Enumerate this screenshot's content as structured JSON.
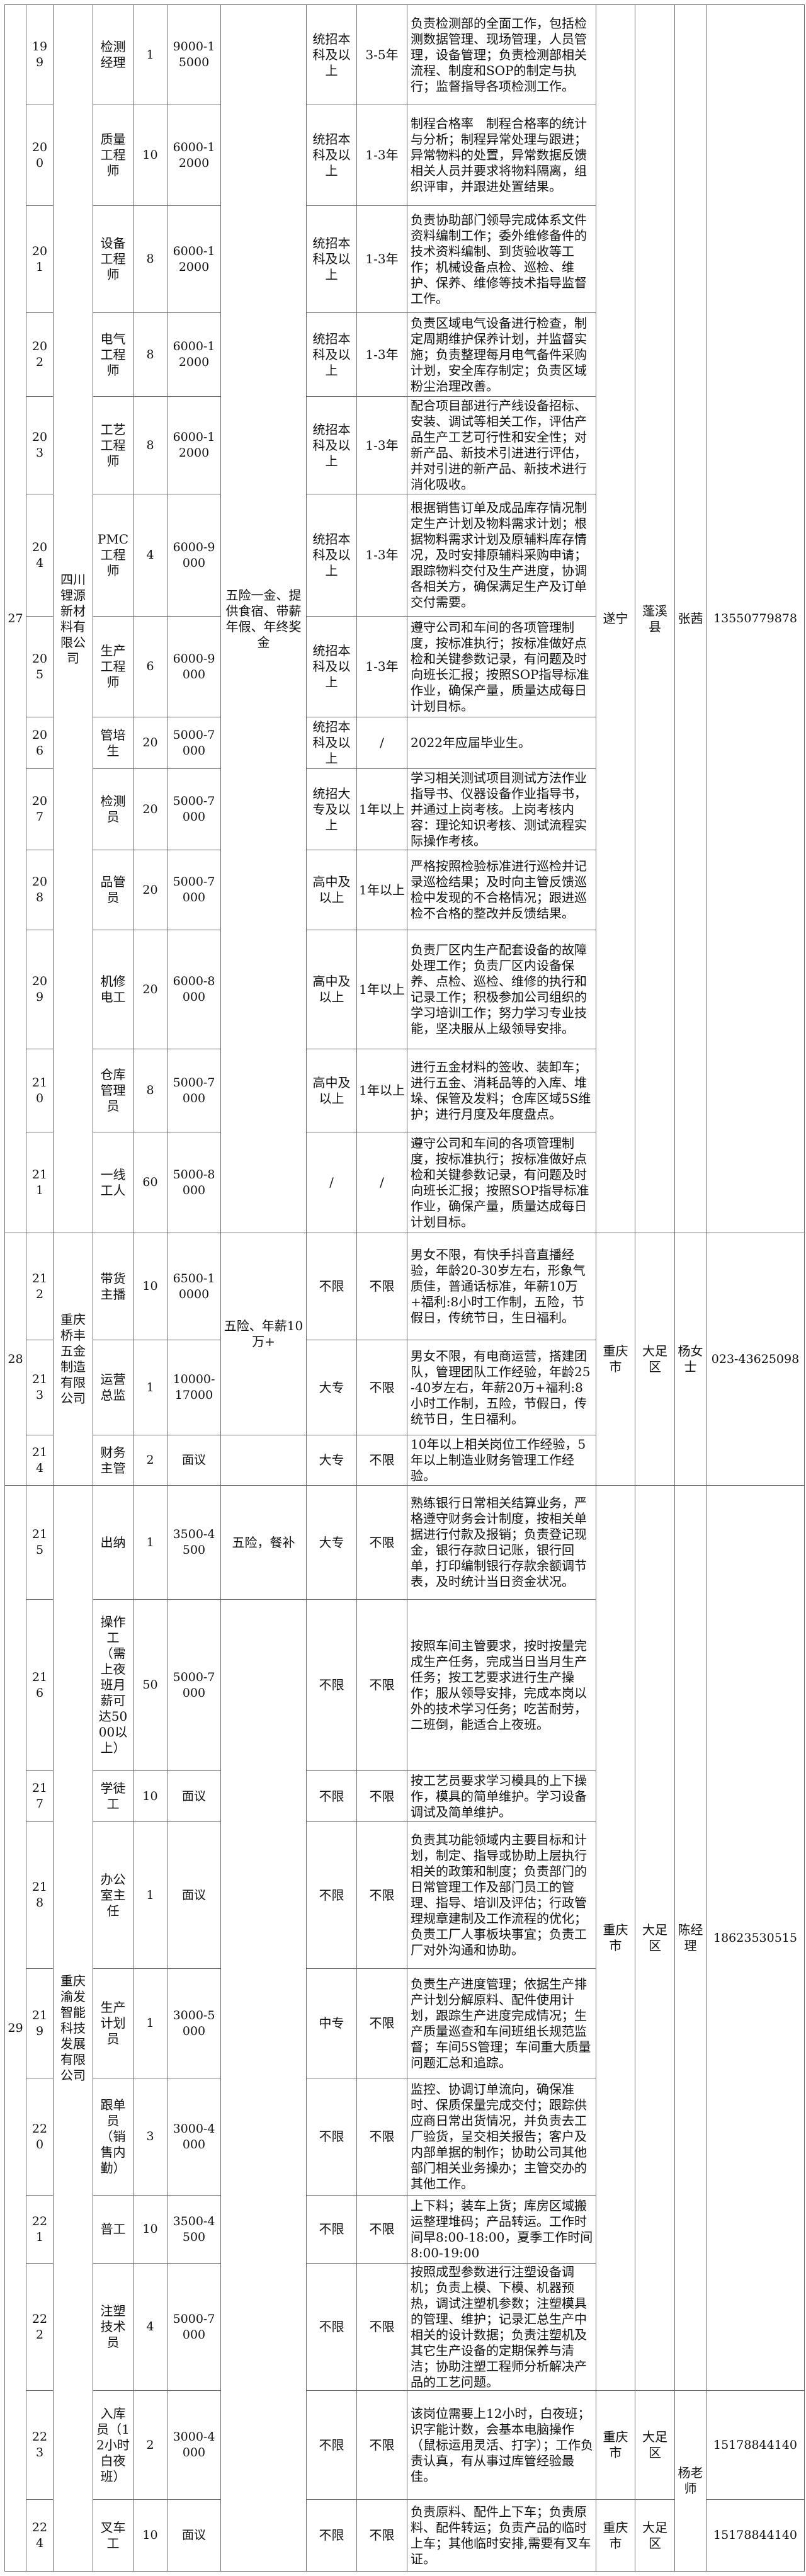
{
  "companies": [
    {
      "no": "27",
      "name": "四川锂源新材料有限公司",
      "benefits": [
        "五险一金、提供食宿、带薪年假、年终奖金"
      ],
      "locations": [
        {
          "city": "遂宁",
          "district": "蓬溪县",
          "phone": "13550779878"
        }
      ],
      "contacts": [
        "张茜"
      ],
      "jobs": [
        {
          "id": "199",
          "title": "检测经理",
          "count": "1",
          "salary": "9000-15000",
          "education": "统招本科及以上",
          "experience": "3-5年",
          "description": "负责检测部的全面工作，包括检测数据管理、现场管理，人员管理，设备管理；负责检测部相关流程、制度和SOP的制定与执行；监督指导各项检测工作。"
        },
        {
          "id": "200",
          "title": "质量工程师",
          "count": "10",
          "salary": "6000-12000",
          "education": "统招本科及以上",
          "experience": "1-3年",
          "description": "制程合格率　制程合格率的统计与分析；制程异常处理与跟进；异常物料的处置，异常数据反馈相关人员并要求将物料隔离，组织评审，并跟进处置结果。"
        },
        {
          "id": "201",
          "title": "设备工程师",
          "count": "8",
          "salary": "6000-12000",
          "education": "统招本科及以上",
          "experience": "1-3年",
          "description": "负责协助部门领导完成体系文件资料编制工作；委外维修备件的技术资料编制、到货验收等工作；机械设备点检、巡检、维护、保养、维修等技术指导监督工作。"
        },
        {
          "id": "202",
          "title": "电气工程师",
          "count": "8",
          "salary": "6000-12000",
          "education": "统招本科及以上",
          "experience": "1-3年",
          "description": "负责区域电气设备进行检查，制定周期维护保养计划，并监督实施；负责整理每月电气备件采购计划，安全库存制定；负责区域粉尘治理改善。"
        },
        {
          "id": "203",
          "title": "工艺工程师",
          "count": "8",
          "salary": "6000-12000",
          "education": "统招本科及以上",
          "experience": "1-3年",
          "description": "配合项目部进行产线设备招标、安装、调试等相关工作，评估产品生产工艺可行性和安全性；对新产品、新技术引进进行评估，并对引进的新产品、新技术进行消化吸收。"
        },
        {
          "id": "204",
          "title": "PMC工程师",
          "count": "4",
          "salary": "6000-9000",
          "education": "统招本科及以上",
          "experience": "1-3年",
          "description": "根据销售订单及成品库存情况制定生产计划及物料需求计划；根据物料需求计划及原辅料库存情况，及时安排原辅料采购申请；跟踪物料交付及生产进度，协调各相关方，确保满足生产及订单交付需要。"
        },
        {
          "id": "205",
          "title": "生产工程师",
          "count": "6",
          "salary": "6000-9000",
          "education": "统招本科及以上",
          "experience": "1-3年",
          "description": "遵守公司和车间的各项管理制度，按标准执行；按标准做好点检和关键参数记录，有问题及时向班长汇报；按照SOP指导标准作业，确保产量，质量达成每日计划目标。"
        },
        {
          "id": "206",
          "title": "管培生",
          "count": "20",
          "salary": "5000-7000",
          "education": "统招本科及以上",
          "experience": "/",
          "description": "2022年应届毕业生。"
        },
        {
          "id": "207",
          "title": "检测员",
          "count": "20",
          "salary": "5000-7000",
          "education": "统招大专及以上",
          "experience": "1年以上",
          "description": "学习相关测试项目测试方法作业指导书、仪器设备作业指导书，并通过上岗考核。上岗考核内容：理论知识考核、测试流程实际操作考核。"
        },
        {
          "id": "208",
          "title": "品管员",
          "count": "20",
          "salary": "5000-7000",
          "education": "高中及以上",
          "experience": "1年以上",
          "description": "严格按照检验标准进行巡检并记录巡检结果；及时向主管反馈巡检中发现的不合格情况；跟进巡检不合格的整改并反馈结果。"
        },
        {
          "id": "209",
          "title": "机修电工",
          "count": "20",
          "salary": "6000-8000",
          "education": "高中及以上",
          "experience": "1年以上",
          "description": "负责厂区内生产配套设备的故障处理工作；负责厂区内设备保养、点检、巡检、维修的执行和记录工作；积极参加公司组织的学习培训工作；努力学习专业技能，坚决服从上级领导安排。"
        },
        {
          "id": "210",
          "title": "仓库管理员",
          "count": "8",
          "salary": "5000-7000",
          "education": "高中及以上",
          "experience": "1年以上",
          "description": "进行五金材料的签收、装卸车；进行五金、消耗品等的入库、堆垛、保管及发料；仓库区域5S维护；进行月度及年度盘点。"
        },
        {
          "id": "211",
          "title": "一线工人",
          "count": "60",
          "salary": "5000-8000",
          "education": "/",
          "experience": "/",
          "description": "遵守公司和车间的各项管理制度，按标准执行；按标准做好点检和关键参数记录，有问题及时向班长汇报；按照SOP指导标准作业，确保产量，质量达成每日计划目标。"
        }
      ]
    },
    {
      "no": "28",
      "name": "重庆桥丰五金制造有限公司",
      "benefits": [
        "五险、年薪10万+",
        ""
      ],
      "locations": [
        {
          "city": "重庆市",
          "district": "大足区",
          "phone": "023-43625098"
        }
      ],
      "contacts": [
        "杨女士"
      ],
      "jobs": [
        {
          "id": "212",
          "title": "带货主播",
          "count": "10",
          "salary": "6500-10000",
          "education": "不限",
          "experience": "不限",
          "description": "男女不限，有快手抖音直播经验，年龄20-30岁左右，形象气质佳，普通话标准，年薪10万+福利:8小时工作制，五险，节假日，传统节日，生日福利。"
        },
        {
          "id": "213",
          "title": "运营总监",
          "count": "1",
          "salary": "10000-17000",
          "education": "大专",
          "experience": "不限",
          "description": "男女不限，有电商运营，搭建团队，管理团队工作经验，年龄25-40岁左右，年薪20万+福利:8小时工作制，五险，节假日，传统节日，生日福利。"
        },
        {
          "id": "214",
          "title": "财务主管",
          "count": "2",
          "salary": "面议",
          "education": "大专",
          "experience": "不限",
          "description": "10年以上相关岗位工作经验，5年以上制造业财务管理工作经验。"
        }
      ]
    },
    {
      "no": "29",
      "name": "重庆渝发智能科技发展有限公司",
      "benefits": [
        "五险，餐补",
        ""
      ],
      "locations": [
        {
          "city": "重庆市",
          "district": "大足区",
          "phone": "18623530515"
        },
        {
          "city": "重庆市",
          "district": "大足区",
          "phone": "15178844140"
        },
        {
          "city": "重庆市",
          "district": "大足区",
          "phone": "15178844140"
        }
      ],
      "contacts": [
        "陈经理",
        "杨老师"
      ],
      "jobs": [
        {
          "id": "215",
          "title": "出纳",
          "count": "1",
          "salary": "3500-4500",
          "education": "大专",
          "experience": "不限",
          "description": "熟练银行日常相关结算业务，严格遵守财务会计制度，按相关单据进行付款及报销；负责登记现金，银行存款日记账，银行回单，打印编制银行存款余额调节表，及时统计当日资金状况。"
        },
        {
          "id": "216",
          "title": "操作工（需上夜班月薪可达5000以上）",
          "count": "50",
          "salary": "5000-7000",
          "education": "不限",
          "experience": "不限",
          "description": "按照车间主管要求，按时按量完成生产任务，完成当日当月生产任务；按工艺要求进行生产操作；服从领导安排，完成本岗以外的技术学习任务；吃苦耐劳，二班倒，能适合上夜班。"
        },
        {
          "id": "217",
          "title": "学徒工",
          "count": "10",
          "salary": "面议",
          "education": "不限",
          "experience": "不限",
          "description": "按工艺员要求学习模具的上下操作，模具的简单维护。学习设备调试及简单维护。"
        },
        {
          "id": "218",
          "title": "办公室主任",
          "count": "1",
          "salary": "面议",
          "education": "不限",
          "experience": "不限",
          "description": "负责其功能领域内主要目标和计划，制定、指导或协助上层执行相关的政策和制度；负责部门的日常管理工作及部门员工的管理、指导、培训及评估；行政管理规章建制及工作流程的优化；负责工厂人事板块事宜；负责工厂对外沟通和协助。"
        },
        {
          "id": "219",
          "title": "生产计划员",
          "count": "1",
          "salary": "3000-5000",
          "education": "中专",
          "experience": "不限",
          "description": "负责生产进度管理；依据生产排产计划分解原料、配件使用计划，跟踪生产进度完成情况；生产质量巡查和车间班组长规范监督；车间5S管理；车间重大质量问题汇总和追踪。"
        },
        {
          "id": "220",
          "title": "跟单员（销售内勤）",
          "count": "3",
          "salary": "3000-4000",
          "education": "不限",
          "experience": "不限",
          "description": "监控、协调订单流向，确保准时、保质保量完成交付；跟踪供应商日常出货情况，并负责去工厂验货，呈交相关报告；客户及内部单据的制作；协助公司其他部门相关业务操办；主管交办的其他工作。"
        },
        {
          "id": "221",
          "title": "普工",
          "count": "10",
          "salary": "3500-4500",
          "education": "不限",
          "experience": "不限",
          "description": "上下料；装车上货；库房区域搬运整理堆码；产品转运。工作时间早8:00-18:00，夏季工作时间8:00-19:00"
        },
        {
          "id": "222",
          "title": "注塑技术员",
          "count": "4",
          "salary": "5000-7000",
          "education": "不限",
          "experience": "不限",
          "description": "按照成型参数进行注塑设备调机；负责上模、下模、机器预热，调试注塑机参数；注塑模具的管理、维护；记录汇总生产中相关的设计数据；负责注塑机及其它生产设备的定期保养与清洁；协助注塑工程师分析解决产品的工艺问题。"
        },
        {
          "id": "223",
          "title": "入库员（12小时白夜班）",
          "count": "2",
          "salary": "3000-4000",
          "education": "不限",
          "experience": "不限",
          "description": "该岗位需要上12小时，白夜班；识字能计数，会基本电脑操作（鼠标运用灵活、打字）；工作负责认真，有从事过库管经验最佳。"
        },
        {
          "id": "224",
          "title": "叉车工",
          "count": "10",
          "salary": "面议",
          "education": "不限",
          "experience": "不限",
          "description": "负责原料、配件上下车；负责原料、配件转运；负责产品的临时上车；其他临时安排,需要有叉车证。"
        }
      ]
    }
  ]
}
